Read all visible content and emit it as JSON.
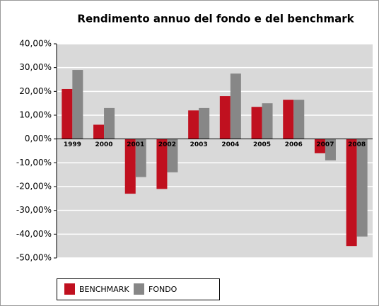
{
  "chart_data": {
    "type": "bar",
    "title": "Rendimento annuo del fondo e del benchmark",
    "categories": [
      "1999",
      "2000",
      "2001",
      "2002",
      "2003",
      "2004",
      "2005",
      "2006",
      "2007",
      "2008"
    ],
    "series": [
      {
        "name": "BENCHMARK",
        "color": "#c0101f",
        "values": [
          21,
          6,
          -23,
          -21,
          12,
          18,
          13.5,
          16.5,
          -6,
          -45
        ]
      },
      {
        "name": "FONDO",
        "color": "#878787",
        "values": [
          29,
          13,
          -16,
          -14,
          13,
          27.5,
          15,
          16.5,
          -9,
          -41
        ]
      }
    ],
    "ylim": [
      -50,
      40
    ],
    "yticks": [
      {
        "value": -50,
        "label": "-50,00%"
      },
      {
        "value": -40,
        "label": "-40,00%"
      },
      {
        "value": -30,
        "label": "-30,00%"
      },
      {
        "value": -20,
        "label": "-20,00%"
      },
      {
        "value": -10,
        "label": "-10,00%"
      },
      {
        "value": 0,
        "label": "0,00%"
      },
      {
        "value": 10,
        "label": "10,00%"
      },
      {
        "value": 20,
        "label": "20,00%"
      },
      {
        "value": 30,
        "label": "30,00%"
      },
      {
        "value": 40,
        "label": "40,00%"
      }
    ],
    "grid": true,
    "legend": "bottom"
  }
}
